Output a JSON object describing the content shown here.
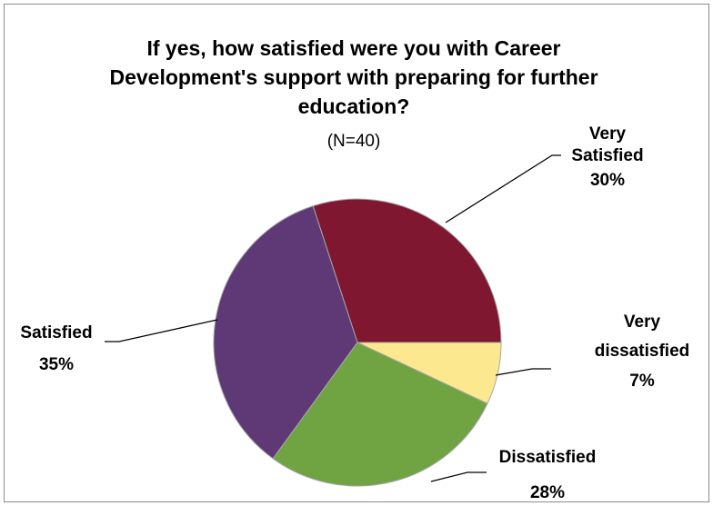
{
  "chart_data": {
    "type": "pie",
    "title": "If yes, how satisfied were you  with Career Development's support with preparing for further education?",
    "title_lines": [
      "If yes, how satisfied were you  with Career",
      "Development's support with preparing for further",
      "education?"
    ],
    "subtitle": "(N=40)",
    "slices": [
      {
        "name": "Very Satisfied",
        "label_lines": [
          "Very",
          "Satisfied"
        ],
        "value": 30,
        "label": "30%",
        "color": "#7f1730"
      },
      {
        "name": "Very dissatisfied",
        "label_lines": [
          "Very",
          "dissatisfied"
        ],
        "value": 7,
        "label": "7%",
        "color": "#fce98f"
      },
      {
        "name": "Dissatisfied",
        "label_lines": [
          "Dissatisfied"
        ],
        "value": 28,
        "label": "28%",
        "color": "#70a342"
      },
      {
        "name": "Satisfied",
        "label_lines": [
          "Satisfied"
        ],
        "value": 35,
        "label": "35%",
        "color": "#5e3975"
      }
    ],
    "legend": "none"
  }
}
